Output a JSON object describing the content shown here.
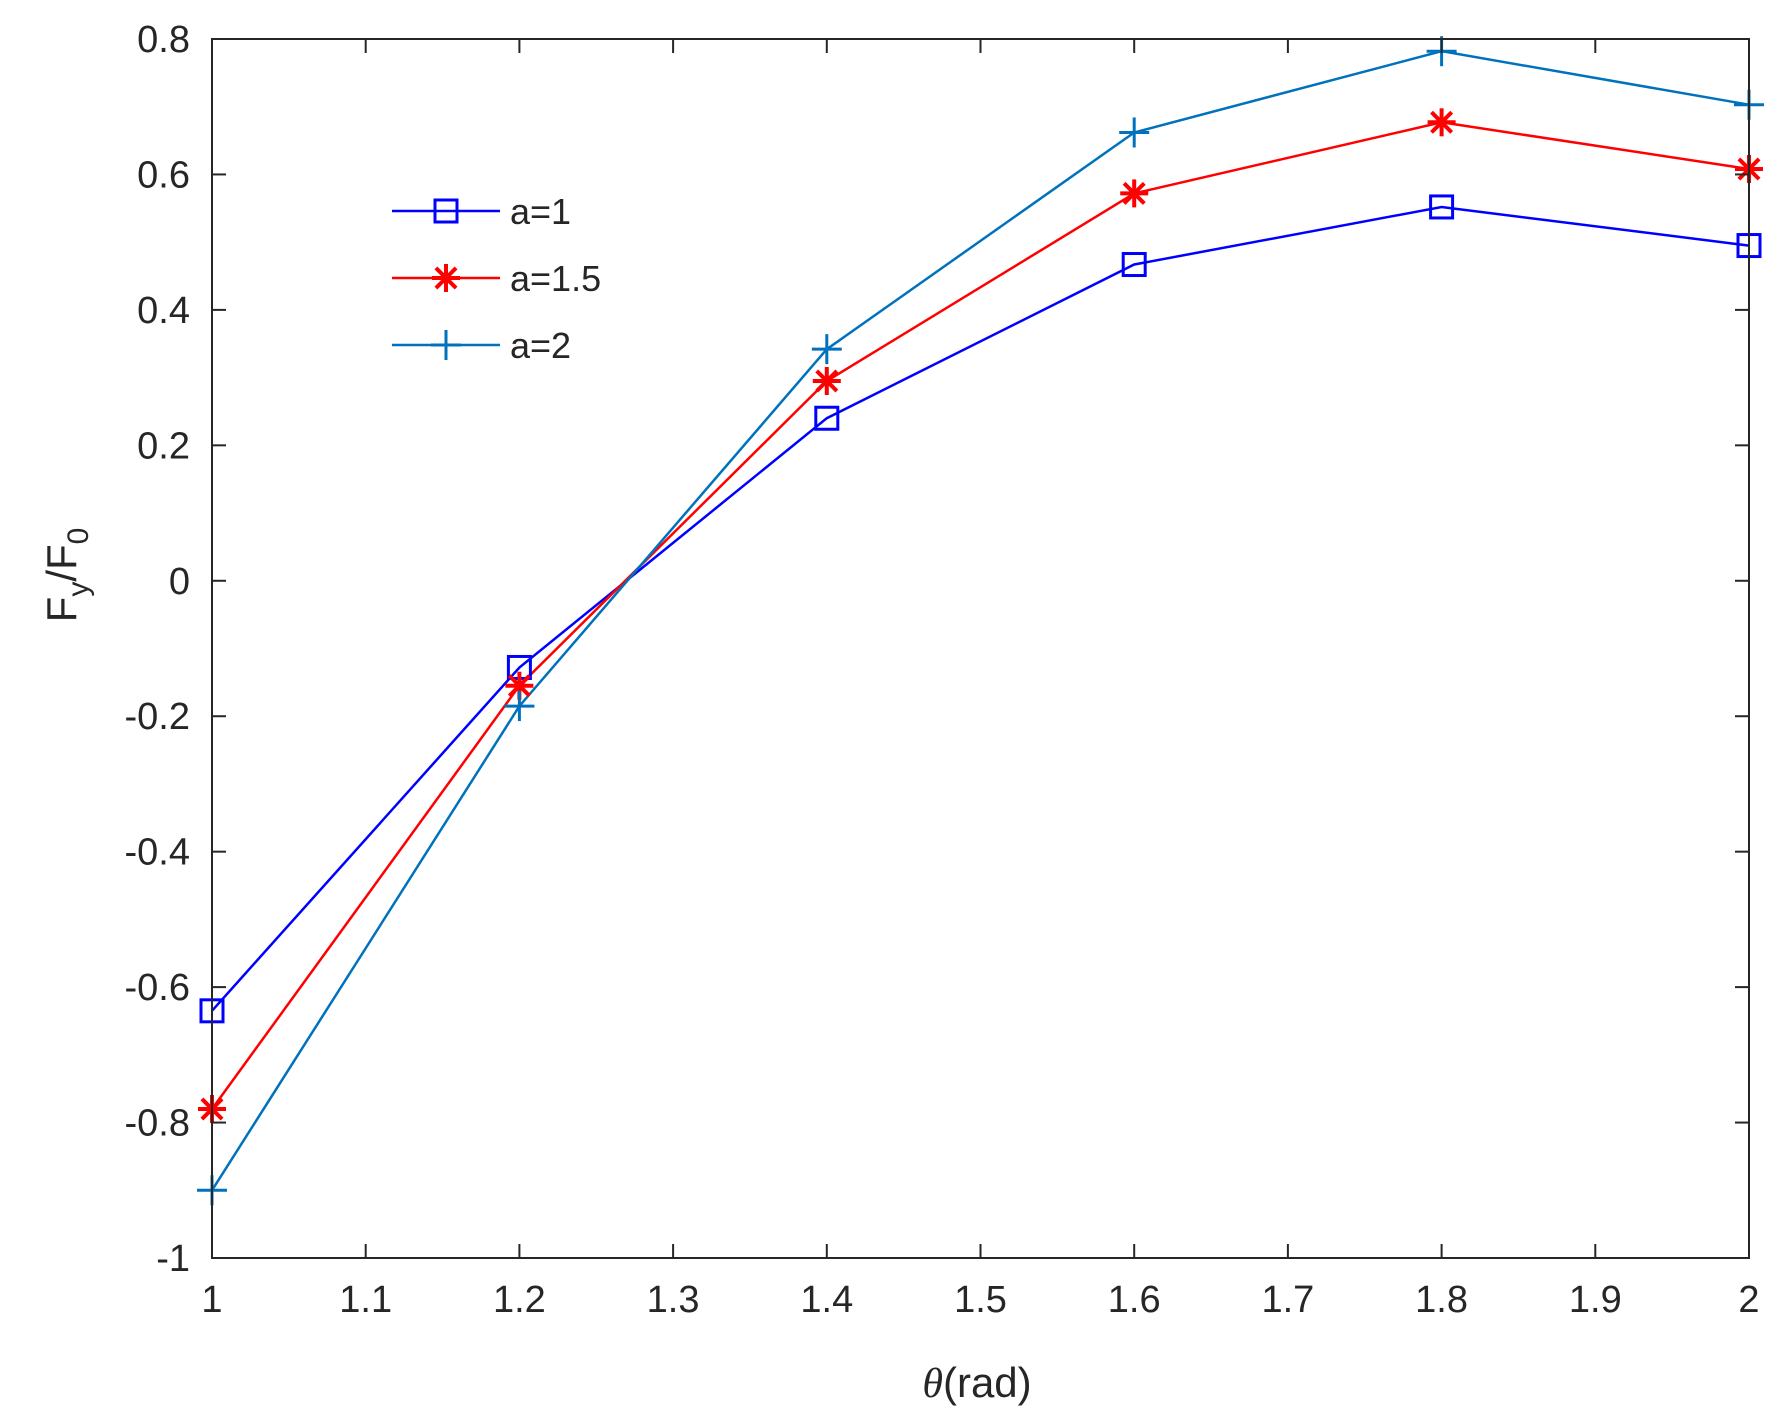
{
  "chart_data": {
    "type": "line",
    "title": "",
    "xlabel": {
      "symbol": "θ",
      "rest": "(rad)"
    },
    "ylabel": {
      "base1": "F",
      "sub1": "y",
      "sep": "/F",
      "sub2": "0"
    },
    "xlim": [
      1,
      2
    ],
    "ylim": [
      -1,
      0.8
    ],
    "xticks": [
      1,
      1.1,
      1.2,
      1.3,
      1.4,
      1.5,
      1.6,
      1.7,
      1.8,
      1.9,
      2
    ],
    "xtick_labels": [
      "1",
      "1.1",
      "1.2",
      "1.3",
      "1.4",
      "1.5",
      "1.6",
      "1.7",
      "1.8",
      "1.9",
      "2"
    ],
    "yticks": [
      -1,
      -0.8,
      -0.6,
      -0.4,
      -0.2,
      0,
      0.2,
      0.4,
      0.6,
      0.8
    ],
    "ytick_labels": [
      "-1",
      "-0.8",
      "-0.6",
      "-0.4",
      "-0.2",
      "0",
      "0.2",
      "0.4",
      "0.6",
      "0.8"
    ],
    "grid": false,
    "legend_position": "top-left",
    "x": [
      1,
      1.2,
      1.4,
      1.6,
      1.8,
      2
    ],
    "series": [
      {
        "name": "a=1",
        "color": "#0000ff",
        "marker": "square",
        "values": [
          -0.635,
          -0.128,
          0.24,
          0.467,
          0.552,
          0.495
        ]
      },
      {
        "name": "a=1.5",
        "color": "#ff0000",
        "marker": "asterisk",
        "values": [
          -0.78,
          -0.155,
          0.295,
          0.572,
          0.677,
          0.608
        ]
      },
      {
        "name": "a=2",
        "color": "#0072bd",
        "marker": "plus",
        "values": [
          -0.9,
          -0.185,
          0.342,
          0.662,
          0.782,
          0.703
        ]
      }
    ]
  }
}
